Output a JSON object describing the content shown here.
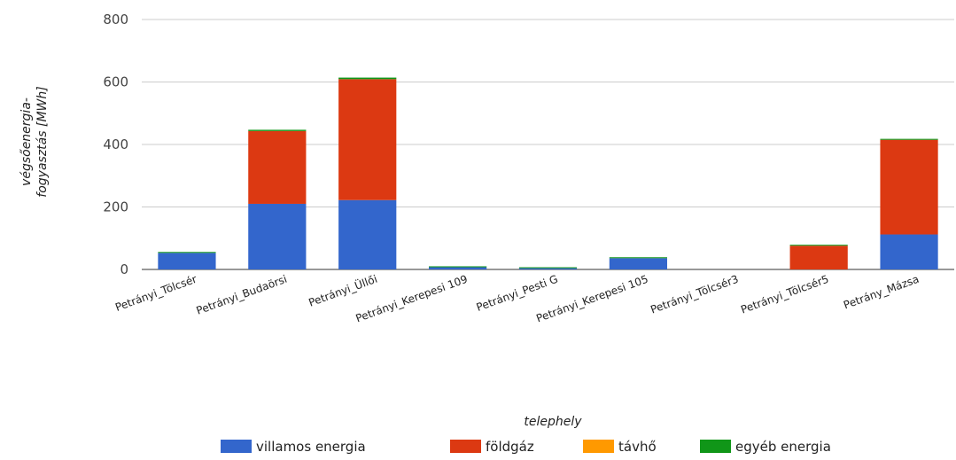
{
  "chart_data": {
    "type": "bar",
    "stacked": true,
    "xlabel": "telephely",
    "ylabel": "végsőenergia-fogyasztás [MWh]",
    "ylabel_lines": [
      "végsőenergia-",
      "fogyasztás [MWh]"
    ],
    "ylim": [
      0,
      800
    ],
    "yticks": [
      0,
      200,
      400,
      600,
      800
    ],
    "grid": true,
    "legend_position": "bottom",
    "categories": [
      "Petrányi_Tölcsér",
      "Petrányi_Budaörsi",
      "Petrányi_Üllői",
      "Petrányi_Kerepesi 109",
      "Petrányi_Pesti G",
      "Petrányi_Kerepesi 105",
      "Petrányi_Tölcsér3",
      "Petrányi_Tölcsér5",
      "Petrány_Mázsa"
    ],
    "series": [
      {
        "name": "villamos energia",
        "color": "#3366cc",
        "values": [
          53,
          210,
          222,
          7,
          4,
          36,
          0,
          0,
          112
        ]
      },
      {
        "name": "földgáz",
        "color": "#dc3912",
        "values": [
          0,
          233,
          387,
          0,
          0,
          0,
          0,
          76,
          303
        ]
      },
      {
        "name": "távhő",
        "color": "#ff9900",
        "values": [
          0,
          0,
          0,
          0,
          0,
          0,
          0,
          0,
          0
        ]
      },
      {
        "name": "egyéb energia",
        "color": "#109618",
        "values": [
          3,
          4,
          5,
          3,
          3,
          3,
          0,
          3,
          3
        ]
      }
    ]
  }
}
